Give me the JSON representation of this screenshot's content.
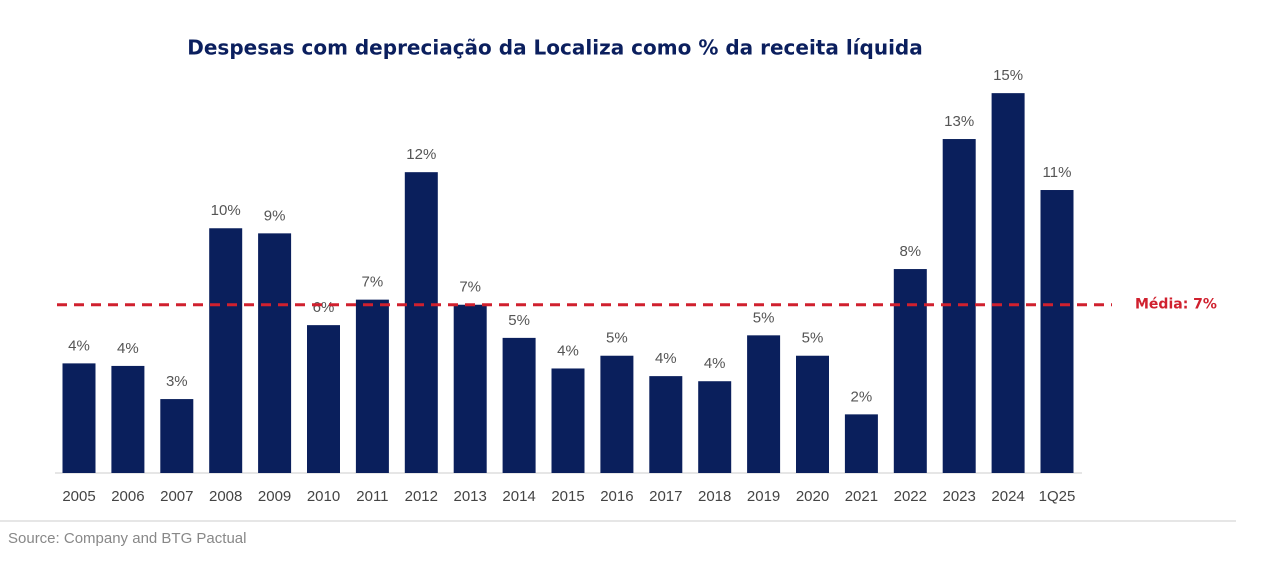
{
  "chart_data": {
    "type": "bar",
    "title": "Despesas com depreciação da Localiza como % da receita líquida",
    "categories": [
      "2005",
      "2006",
      "2007",
      "2008",
      "2009",
      "2010",
      "2011",
      "2012",
      "2013",
      "2014",
      "2015",
      "2016",
      "2017",
      "2018",
      "2019",
      "2020",
      "2021",
      "2022",
      "2023",
      "2024",
      "1Q25"
    ],
    "values": [
      4.3,
      4.2,
      2.9,
      9.6,
      9.4,
      5.8,
      6.8,
      11.8,
      6.6,
      5.3,
      4.1,
      4.6,
      3.8,
      3.6,
      5.4,
      4.6,
      2.3,
      8.0,
      13.1,
      14.9,
      11.1
    ],
    "value_labels": [
      "4%",
      "4%",
      "3%",
      "10%",
      "9%",
      "6%",
      "7%",
      "12%",
      "7%",
      "5%",
      "4%",
      "5%",
      "4%",
      "4%",
      "5%",
      "5%",
      "2%",
      "8%",
      "13%",
      "15%",
      "11%"
    ],
    "color": "#0a1f5c",
    "ylim": [
      0,
      16.2
    ],
    "average": {
      "value": 6.6,
      "label": "Média: 7%",
      "color": "#d0202e"
    },
    "source": "Source: Company and BTG Pactual"
  }
}
